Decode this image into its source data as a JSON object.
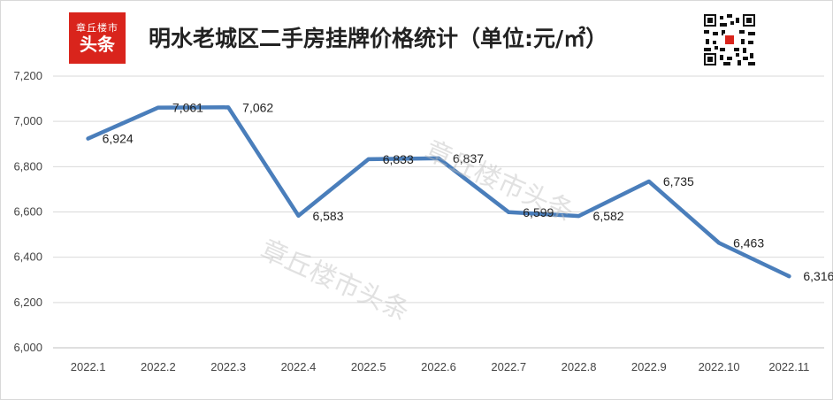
{
  "header": {
    "title": "明水老城区二手房挂牌价格统计（单位:元/㎡）",
    "logo_line1": "章丘楼市",
    "logo_line2": "头条",
    "logo_color": "#d9241c"
  },
  "watermark": "章丘楼市头条",
  "chart_data": {
    "type": "line",
    "title": "明水老城区二手房挂牌价格统计（单位:元/㎡）",
    "xlabel": "",
    "ylabel": "",
    "categories": [
      "2022.1",
      "2022.2",
      "2022.3",
      "2022.4",
      "2022.5",
      "2022.6",
      "2022.7",
      "2022.8",
      "2022.9",
      "2022.10",
      "2022.11"
    ],
    "series": [
      {
        "values": [
          6924,
          7061,
          7062,
          6583,
          6833,
          6837,
          6599,
          6582,
          6735,
          6463,
          6316
        ],
        "color": "#4a7ebb"
      }
    ],
    "data_labels": [
      "6,924",
      "7,061",
      "7,062",
      "6,583",
      "6,833",
      "6,837",
      "6,599",
      "6,582",
      "6,735",
      "6,463",
      "6,316"
    ],
    "y_ticks": [
      "6,000",
      "6,200",
      "6,400",
      "6,600",
      "6,800",
      "7,000",
      "7,200"
    ],
    "ylim": [
      6000,
      7200
    ],
    "grid": true,
    "legend": "none"
  }
}
